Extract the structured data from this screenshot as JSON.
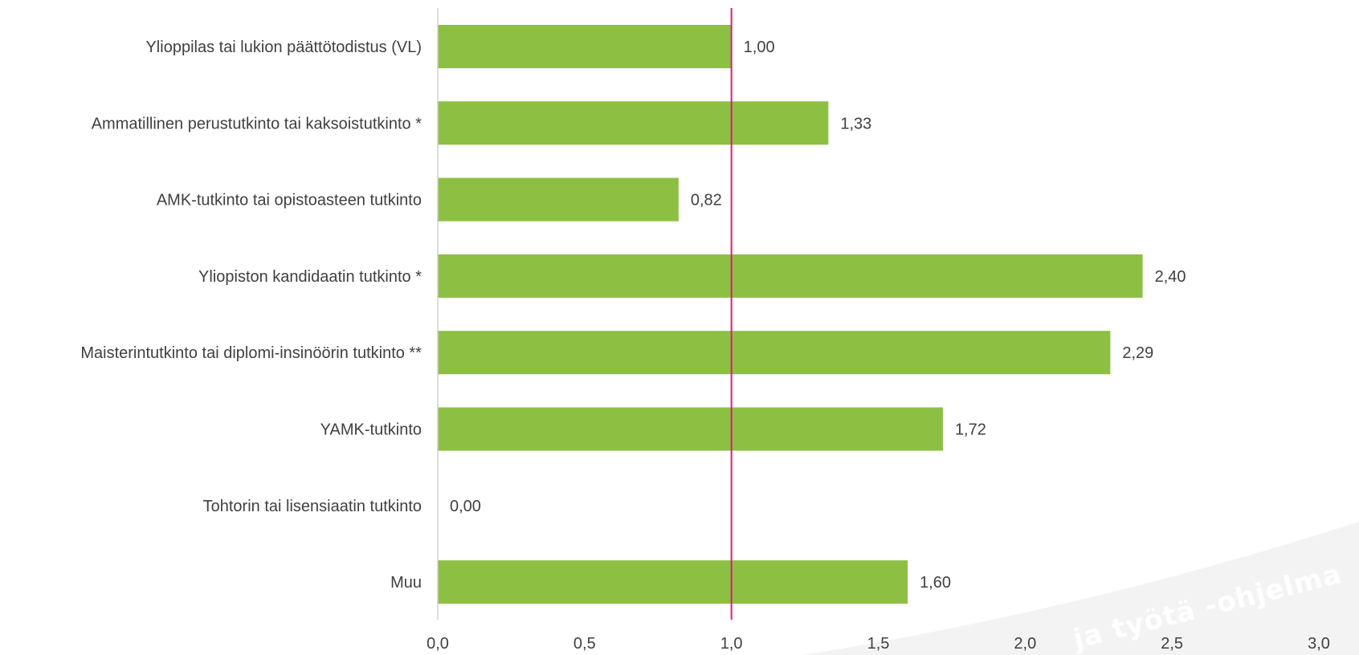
{
  "chart_data": {
    "type": "bar",
    "orientation": "horizontal",
    "categories": [
      "Ylioppilas tai lukion päättötodistus (VL)",
      "Ammatillinen perustutkinto tai kaksoistutkinto *",
      "AMK-tutkinto tai opistoasteen tutkinto",
      "Yliopiston kandidaatin tutkinto *",
      "Maisterintutkinto tai diplomi-insinöörin tutkinto **",
      "YAMK-tutkinto",
      "Tohtorin tai lisensiaatin tutkinto",
      "Muu"
    ],
    "values": [
      1.0,
      1.33,
      0.82,
      2.4,
      2.29,
      1.72,
      0.0,
      1.6
    ],
    "value_labels": [
      "1,00",
      "1,33",
      "0,82",
      "2,40",
      "2,29",
      "1,72",
      "0,00",
      "1,60"
    ],
    "xlim": [
      0,
      3.0
    ],
    "ticks": [
      0,
      0.5,
      1.0,
      1.5,
      2.0,
      2.5,
      3.0
    ],
    "tick_labels": [
      "0,0",
      "0,5",
      "1,0",
      "1,5",
      "2,0",
      "2,5",
      "3,0"
    ],
    "reference_line": 1.0,
    "title": "",
    "xlabel": "",
    "ylabel": "",
    "grid": false,
    "legend": "none",
    "bar_color": "#8dbf42",
    "reference_line_color": "#e0197d",
    "axis_color": "#d0d0d0"
  },
  "watermark": {
    "text": "Koulutusta ja työtä -ohjelma",
    "visible_text": "ja työtä -ohjelma",
    "band_color": "#f3f3f3"
  }
}
